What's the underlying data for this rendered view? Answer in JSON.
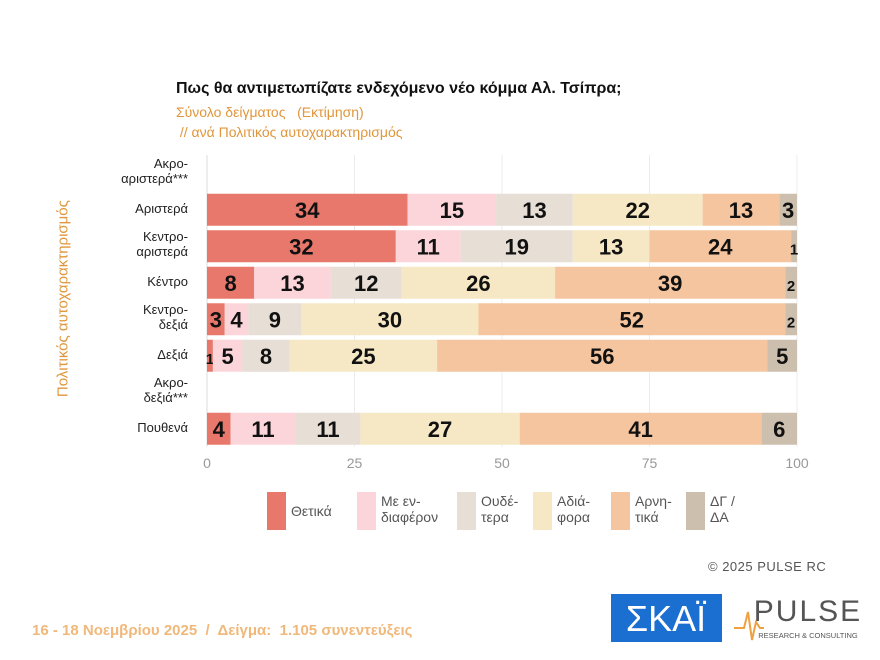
{
  "chart_data": {
    "type": "stacked-bar-horizontal",
    "title": "Πως θα αντιμετωπίζατε ενδεχόμενο νέο κόμμα Αλ. Τσίπρα;",
    "subtitle": [
      "Σύνολο δείγματος   (Εκτίμηση)",
      " // ανά Πολιτικός αυτοχαρακτηρισμός"
    ],
    "ylabel": "Πολιτικός αυτοχαρακτηρισμός",
    "categories": [
      "Ακρο-\nαριστερά***",
      "Αριστερά",
      "Κεντρο-\nαριστερά",
      "Κέντρο",
      "Κεντρο-\nδεξιά",
      "Δεξιά",
      "Ακρο-\nδεξιά***",
      "Πουθενά"
    ],
    "series": [
      {
        "name": "Θετικά",
        "color": "#e8786c",
        "values": [
          null,
          34,
          32,
          8,
          3,
          1,
          null,
          4
        ]
      },
      {
        "name": "Με εν-\nδιαφέρον",
        "color": "#fbd5da",
        "values": [
          null,
          15,
          11,
          13,
          4,
          5,
          null,
          11
        ]
      },
      {
        "name": "Ουδέ-\nτερα",
        "color": "#e7ded6",
        "values": [
          null,
          13,
          19,
          12,
          9,
          8,
          null,
          11
        ]
      },
      {
        "name": "Αδιά-\nφορα",
        "color": "#f6e8c4",
        "values": [
          null,
          22,
          13,
          26,
          30,
          25,
          null,
          27
        ]
      },
      {
        "name": "Αρνη-\nτικά",
        "color": "#f4c59f",
        "values": [
          null,
          13,
          24,
          39,
          52,
          56,
          null,
          41
        ]
      },
      {
        "name": "ΔΓ /\nΔΑ",
        "color": "#cdbfae",
        "values": [
          null,
          3,
          1,
          2,
          2,
          5,
          null,
          6
        ]
      }
    ],
    "xlim": [
      0,
      100
    ],
    "xticks": [
      0,
      25,
      50,
      75,
      100
    ],
    "grid": true,
    "copyright": "© 2025 PULSE RC",
    "footnote": "16 - 18 Νοεμβρίου 2025  /  Δείγμα:  1.105 συνεντεύξεις",
    "logos": {
      "skai": "ΣΚΑΪ",
      "pulse": "PULSE",
      "pulse_tagline": "RESEARCH & CONSULTING"
    }
  }
}
